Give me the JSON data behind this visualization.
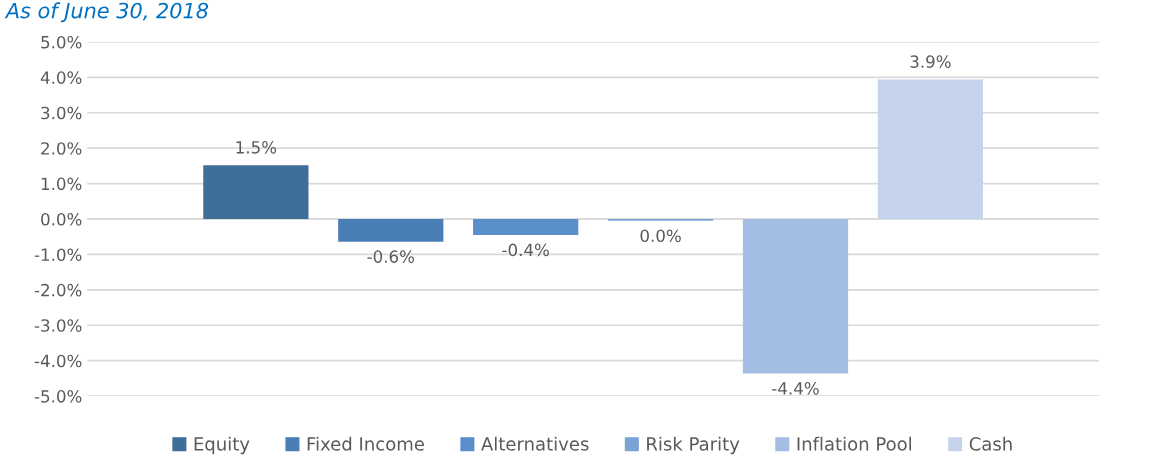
{
  "chart_data": {
    "type": "bar",
    "subtitle": "As of June 30, 2018",
    "categories": [
      null
    ],
    "series": [
      {
        "name": "Equity",
        "color": "#3f6e99",
        "values": [
          1.52
        ],
        "value_labels": [
          "1.5%"
        ]
      },
      {
        "name": "Fixed Income",
        "color": "#4a7fb5",
        "values": [
          -0.64
        ],
        "value_labels": [
          "-0.6%"
        ]
      },
      {
        "name": "Alternatives",
        "color": "#5b8fcb",
        "values": [
          -0.45
        ],
        "value_labels": [
          "-0.4%"
        ]
      },
      {
        "name": "Risk Parity",
        "color": "#7aa3d6",
        "values": [
          -0.05
        ],
        "value_labels": [
          "0.0%"
        ]
      },
      {
        "name": "Inflation Pool",
        "color": "#a3bde3",
        "values": [
          -4.36
        ],
        "value_labels": [
          "-4.4%"
        ]
      },
      {
        "name": "Cash",
        "color": "#c5d4ec",
        "values": [
          3.94
        ],
        "value_labels": [
          "3.9%"
        ]
      }
    ],
    "ylim": [
      -5.0,
      5.0
    ],
    "yticks": [
      {
        "value": -5,
        "label": "-5.0%"
      },
      {
        "value": -4,
        "label": "-4.0%"
      },
      {
        "value": -3,
        "label": "-3.0%"
      },
      {
        "value": -2,
        "label": "-2.0%"
      },
      {
        "value": -1,
        "label": "-1.0%"
      },
      {
        "value": 0,
        "label": "0.0%"
      },
      {
        "value": 1,
        "label": "1.0%"
      },
      {
        "value": 2,
        "label": "2.0%"
      },
      {
        "value": 3,
        "label": "3.0%"
      },
      {
        "value": 4,
        "label": "4.0%"
      },
      {
        "value": 5,
        "label": "5.0%"
      }
    ],
    "grid": "y",
    "legend": "bottom"
  }
}
